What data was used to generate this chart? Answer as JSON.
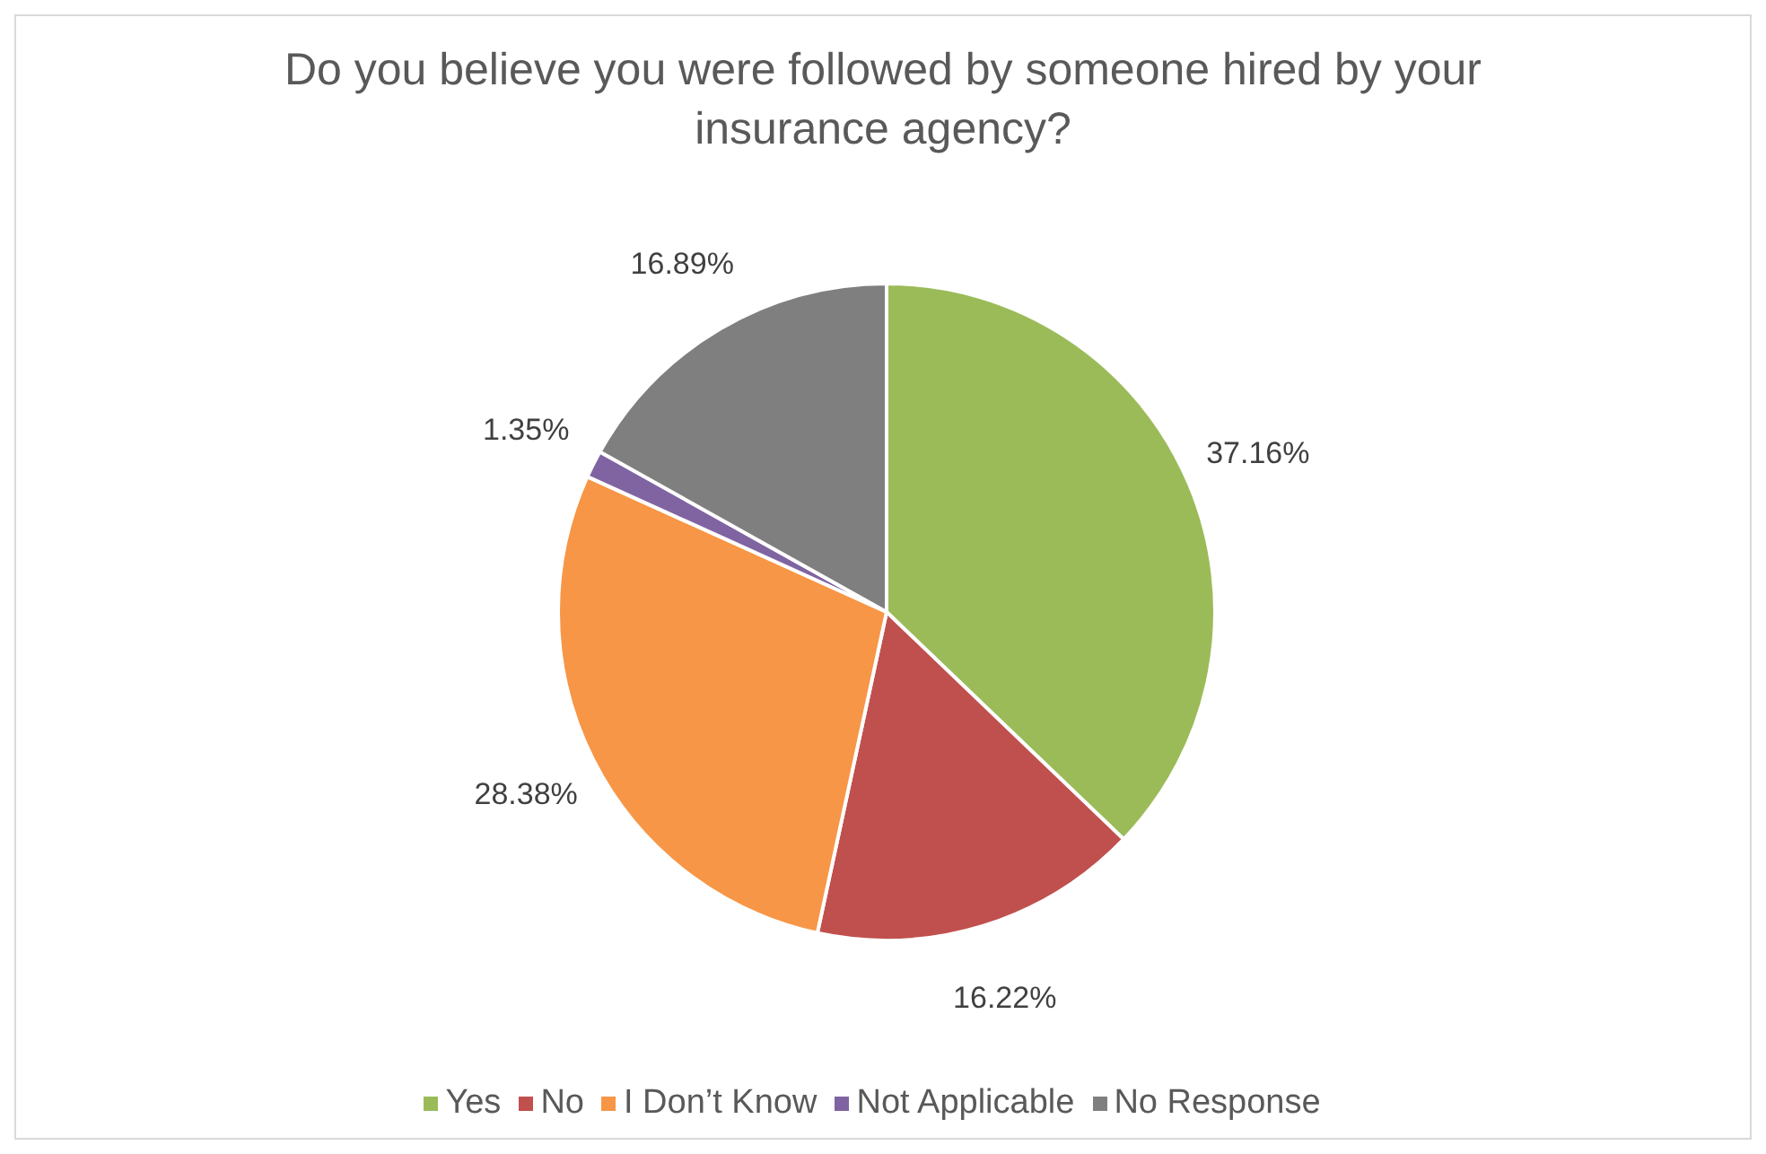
{
  "chart_data": {
    "type": "pie",
    "title": "Do you believe you were followed by someone hired by your insurance agency?",
    "categories": [
      "Yes",
      "No",
      "I Don’t Know",
      "Not Applicable",
      "No Response"
    ],
    "values": [
      37.16,
      16.22,
      28.38,
      1.35,
      16.89
    ],
    "colors": [
      "#9bbb59",
      "#c0504d",
      "#f79646",
      "#8064a2",
      "#7f7f7f"
    ],
    "value_labels": [
      "37.16%",
      "16.22%",
      "28.38%",
      "1.35%",
      "16.89%"
    ],
    "legend": "bottom"
  }
}
